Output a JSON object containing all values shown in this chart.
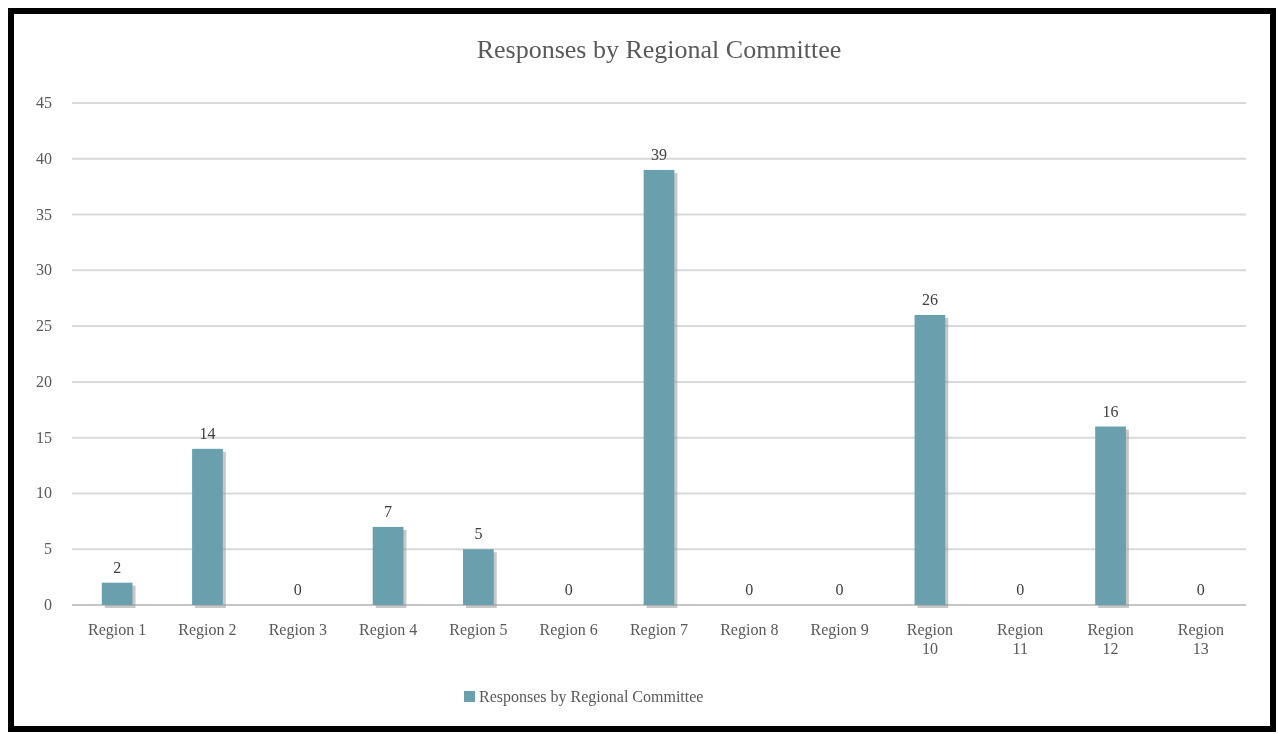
{
  "chart_data": {
    "type": "bar",
    "title": "Responses by Regional Committee",
    "categories": [
      "Region 1",
      "Region 2",
      "Region 3",
      "Region 4",
      "Region 5",
      "Region 6",
      "Region 7",
      "Region 8",
      "Region 9",
      "Region 10",
      "Region 11",
      "Region 12",
      "Region 13"
    ],
    "series": [
      {
        "name": "Responses by Regional Committee",
        "color": "#6a9fae",
        "values": [
          2,
          14,
          0,
          7,
          5,
          0,
          39,
          0,
          0,
          26,
          0,
          16,
          0
        ]
      }
    ],
    "ylim": [
      0,
      45
    ],
    "yticks": [
      0,
      5,
      10,
      15,
      20,
      25,
      30,
      35,
      40,
      45
    ],
    "grid": "y",
    "legend": "bottom",
    "data_labels": true
  }
}
